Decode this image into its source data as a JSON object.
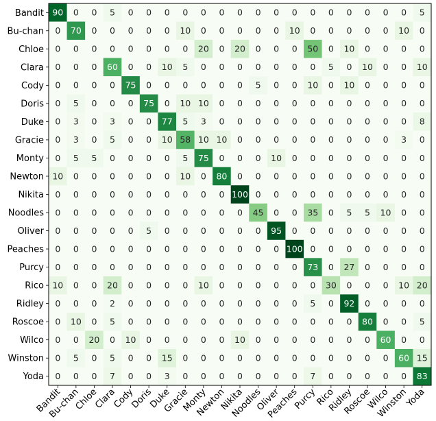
{
  "chart_data": {
    "type": "heatmap",
    "title": "",
    "xlabel": "",
    "ylabel": "",
    "labels": [
      "Bandit",
      "Bu-chan",
      "Chloe",
      "Clara",
      "Cody",
      "Doris",
      "Duke",
      "Gracie",
      "Monty",
      "Newton",
      "Nikita",
      "Noodles",
      "Oliver",
      "Peaches",
      "Purcy",
      "Rico",
      "Ridley",
      "Roscoe",
      "Wilco",
      "Winston",
      "Yoda"
    ],
    "matrix": [
      [
        90,
        0,
        0,
        5,
        0,
        0,
        0,
        0,
        0,
        0,
        0,
        0,
        0,
        0,
        0,
        0,
        0,
        0,
        0,
        0,
        5
      ],
      [
        0,
        70,
        0,
        0,
        0,
        0,
        0,
        10,
        0,
        0,
        0,
        0,
        0,
        10,
        0,
        0,
        0,
        0,
        0,
        10,
        0
      ],
      [
        0,
        0,
        0,
        0,
        0,
        0,
        0,
        0,
        20,
        0,
        20,
        0,
        0,
        0,
        50,
        0,
        10,
        0,
        0,
        0,
        0
      ],
      [
        0,
        0,
        0,
        60,
        0,
        0,
        10,
        5,
        0,
        0,
        0,
        0,
        0,
        0,
        0,
        5,
        0,
        10,
        0,
        0,
        10
      ],
      [
        0,
        0,
        0,
        0,
        75,
        0,
        0,
        0,
        0,
        0,
        0,
        5,
        0,
        0,
        10,
        0,
        10,
        0,
        0,
        0,
        0
      ],
      [
        0,
        5,
        0,
        0,
        0,
        75,
        0,
        10,
        10,
        0,
        0,
        0,
        0,
        0,
        0,
        0,
        0,
        0,
        0,
        0,
        0
      ],
      [
        0,
        3,
        0,
        3,
        0,
        0,
        77,
        5,
        3,
        0,
        0,
        0,
        0,
        0,
        0,
        0,
        0,
        0,
        0,
        0,
        8
      ],
      [
        0,
        3,
        0,
        5,
        0,
        0,
        10,
        58,
        10,
        10,
        0,
        0,
        0,
        0,
        0,
        0,
        0,
        0,
        0,
        3,
        0
      ],
      [
        0,
        5,
        5,
        0,
        0,
        0,
        0,
        5,
        75,
        0,
        0,
        0,
        10,
        0,
        0,
        0,
        0,
        0,
        0,
        0,
        0
      ],
      [
        10,
        0,
        0,
        0,
        0,
        0,
        0,
        10,
        0,
        80,
        0,
        0,
        0,
        0,
        0,
        0,
        0,
        0,
        0,
        0,
        0
      ],
      [
        0,
        0,
        0,
        0,
        0,
        0,
        0,
        0,
        0,
        0,
        100,
        0,
        0,
        0,
        0,
        0,
        0,
        0,
        0,
        0,
        0
      ],
      [
        0,
        0,
        0,
        0,
        0,
        0,
        0,
        0,
        0,
        0,
        0,
        45,
        0,
        0,
        35,
        0,
        5,
        5,
        10,
        0,
        0
      ],
      [
        0,
        0,
        0,
        0,
        0,
        5,
        0,
        0,
        0,
        0,
        0,
        0,
        95,
        0,
        0,
        0,
        0,
        0,
        0,
        0,
        0
      ],
      [
        0,
        0,
        0,
        0,
        0,
        0,
        0,
        0,
        0,
        0,
        0,
        0,
        0,
        100,
        0,
        0,
        0,
        0,
        0,
        0,
        0
      ],
      [
        0,
        0,
        0,
        0,
        0,
        0,
        0,
        0,
        0,
        0,
        0,
        0,
        0,
        0,
        73,
        0,
        27,
        0,
        0,
        0,
        0
      ],
      [
        10,
        0,
        0,
        20,
        0,
        0,
        0,
        0,
        10,
        0,
        0,
        0,
        0,
        0,
        0,
        30,
        0,
        0,
        0,
        10,
        20
      ],
      [
        0,
        0,
        0,
        2,
        0,
        0,
        0,
        0,
        0,
        0,
        0,
        0,
        0,
        0,
        5,
        0,
        92,
        0,
        0,
        0,
        0
      ],
      [
        0,
        10,
        0,
        5,
        0,
        0,
        0,
        0,
        0,
        0,
        0,
        0,
        0,
        0,
        0,
        0,
        0,
        80,
        0,
        0,
        5
      ],
      [
        0,
        0,
        20,
        0,
        10,
        0,
        0,
        0,
        0,
        0,
        10,
        0,
        0,
        0,
        0,
        0,
        0,
        0,
        60,
        0,
        0
      ],
      [
        0,
        5,
        0,
        5,
        0,
        0,
        15,
        0,
        0,
        0,
        0,
        0,
        0,
        0,
        0,
        0,
        0,
        0,
        0,
        60,
        15
      ],
      [
        0,
        0,
        0,
        7,
        0,
        0,
        3,
        0,
        0,
        0,
        0,
        0,
        0,
        0,
        7,
        0,
        0,
        0,
        0,
        0,
        83
      ]
    ],
    "value_range": [
      0,
      100
    ],
    "colormap": "Greens",
    "grid": false,
    "legend": "none"
  }
}
